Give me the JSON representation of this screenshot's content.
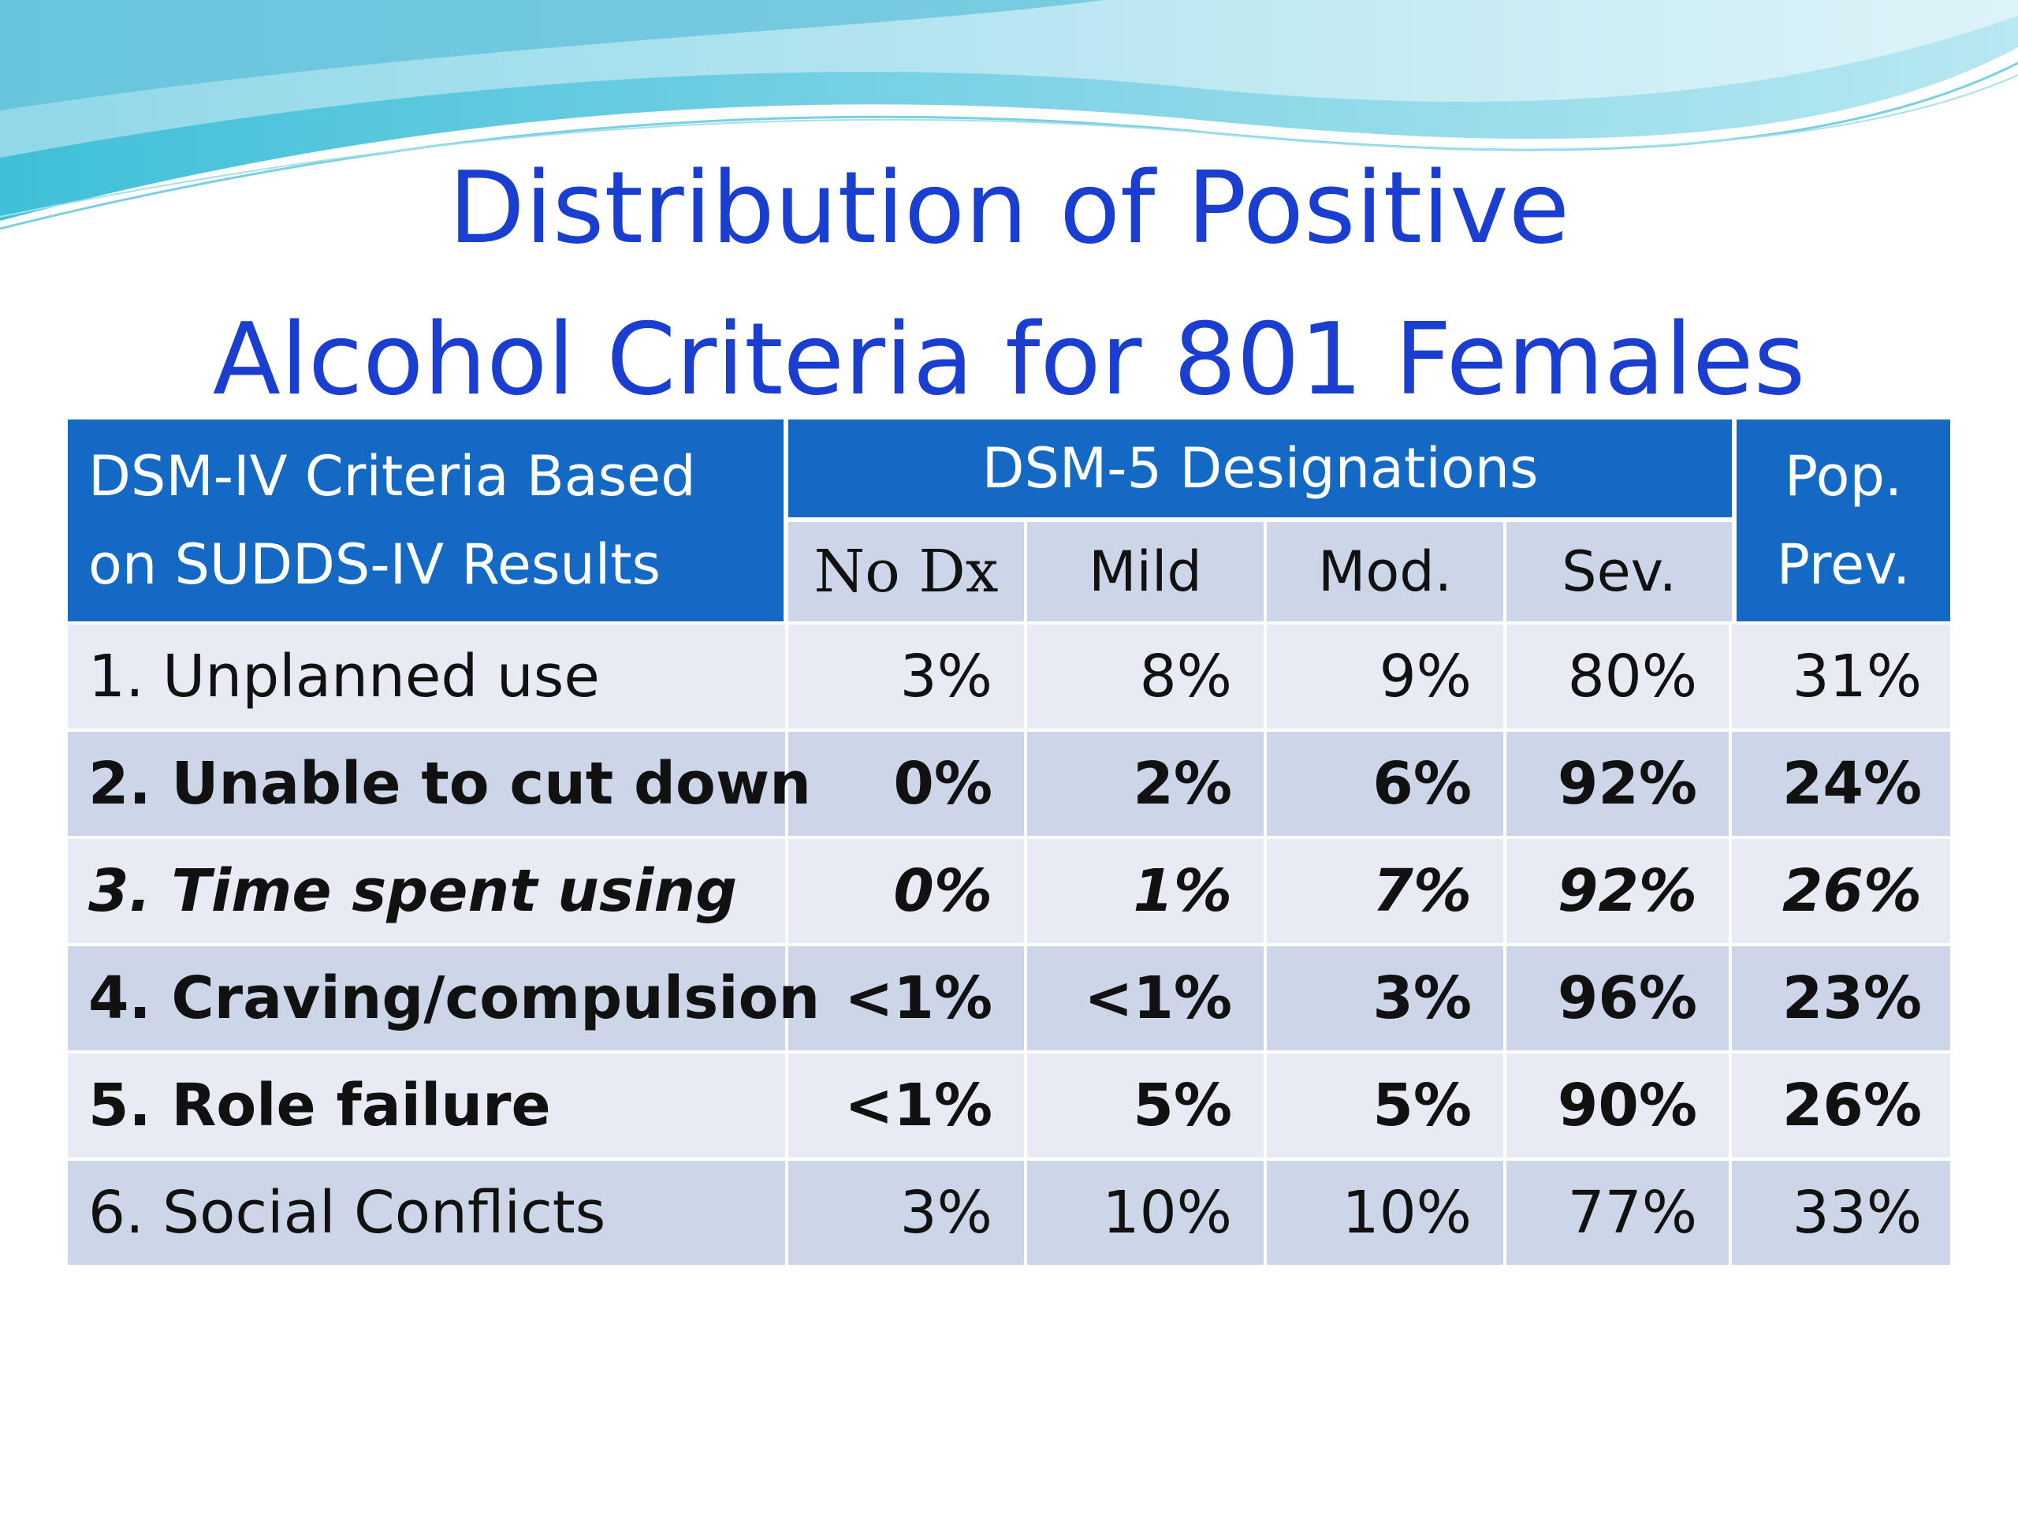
{
  "title": {
    "line1": "Distribution of Positive",
    "line2": "Alcohol Criteria for 801 Females"
  },
  "table": {
    "header": {
      "criteria_line1": "DSM-IV Criteria Based",
      "criteria_line2": "on SUDDS-IV Results",
      "dsm5": "DSM-5 Designations",
      "pop_line1": "Pop.",
      "pop_line2": "Prev.",
      "sub": [
        "No Dx",
        "Mild",
        "Mod.",
        "Sev."
      ]
    },
    "rows": [
      {
        "criterion": "1. Unplanned use",
        "no_dx": "3%",
        "mild": "8%",
        "mod": "9%",
        "sev": "80%",
        "pop_prev": "31%"
      },
      {
        "criterion": "2. Unable to cut down",
        "no_dx": "0%",
        "mild": "2%",
        "mod": "6%",
        "sev": "92%",
        "pop_prev": "24%"
      },
      {
        "criterion": "3. Time spent using",
        "no_dx": "0%",
        "mild": "1%",
        "mod": "7%",
        "sev": "92%",
        "pop_prev": "26%"
      },
      {
        "criterion": "4. Craving/compulsion",
        "no_dx": "<1%",
        "mild": "<1%",
        "mod": "3%",
        "sev": "96%",
        "pop_prev": "23%"
      },
      {
        "criterion": "5. Role failure",
        "no_dx": "<1%",
        "mild": "5%",
        "mod": "5%",
        "sev": "90%",
        "pop_prev": "26%"
      },
      {
        "criterion": "6.  Social Conflicts",
        "no_dx": "3%",
        "mild": "10%",
        "mod": "10%",
        "sev": "77%",
        "pop_prev": "33%"
      }
    ]
  },
  "colors": {
    "title": "#1a3fd0",
    "header_bg": "#1469c4",
    "row_light": "#e8ebf4",
    "row_dark": "#cdd5e8"
  }
}
